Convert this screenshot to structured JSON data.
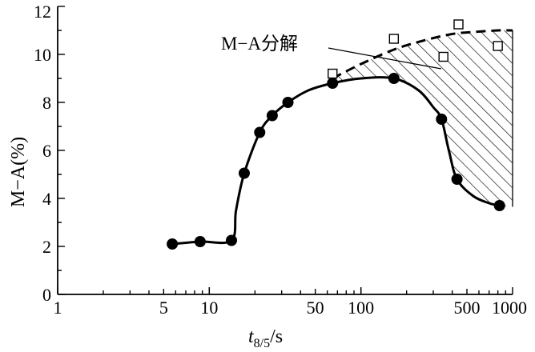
{
  "chart_data": {
    "type": "scatter",
    "title": "",
    "xscale": "log",
    "xlim": [
      1,
      1000
    ],
    "ylim": [
      0,
      12
    ],
    "x_ticks": [
      1,
      5,
      10,
      50,
      100,
      500,
      1000
    ],
    "x_tick_labels": [
      "1",
      "5",
      "10",
      "50",
      "100",
      "500",
      "1000"
    ],
    "y_ticks": [
      0,
      2,
      4,
      6,
      8,
      10,
      12
    ],
    "y_tick_labels": [
      "0",
      "2",
      "4",
      "6",
      "8",
      "10",
      "12"
    ],
    "xlabel": {
      "base": "t",
      "sub": "8/5",
      "unit": "/s"
    },
    "ylabel": "M−A(%)",
    "grid": false,
    "legend": "none",
    "annotations": [
      {
        "text": "M−A分解",
        "points_to": [
          330,
          9.4
        ]
      }
    ],
    "series": [
      {
        "marker": "filled-circle",
        "values": [
          {
            "x": 5.7,
            "y": 2.1
          },
          {
            "x": 8.7,
            "y": 2.2
          },
          {
            "x": 14,
            "y": 2.25
          },
          {
            "x": 17,
            "y": 5.05
          },
          {
            "x": 21.5,
            "y": 6.75
          },
          {
            "x": 26,
            "y": 7.45
          },
          {
            "x": 33,
            "y": 8.0
          },
          {
            "x": 65,
            "y": 8.8
          },
          {
            "x": 165,
            "y": 9.0
          },
          {
            "x": 340,
            "y": 7.3
          },
          {
            "x": 430,
            "y": 4.8
          },
          {
            "x": 820,
            "y": 3.7
          }
        ]
      },
      {
        "marker": "open-square",
        "values": [
          {
            "x": 65,
            "y": 9.2
          },
          {
            "x": 165,
            "y": 10.65
          },
          {
            "x": 350,
            "y": 9.9
          },
          {
            "x": 440,
            "y": 11.25
          },
          {
            "x": 800,
            "y": 10.35
          }
        ]
      }
    ],
    "solid_curve": [
      [
        5.7,
        2.1
      ],
      [
        8.7,
        2.2
      ],
      [
        14,
        2.25
      ],
      [
        15,
        3.5
      ],
      [
        17,
        5.05
      ],
      [
        21.5,
        6.75
      ],
      [
        26,
        7.45
      ],
      [
        33,
        8.0
      ],
      [
        45,
        8.5
      ],
      [
        65,
        8.8
      ],
      [
        100,
        9.0
      ],
      [
        165,
        9.0
      ],
      [
        240,
        8.5
      ],
      [
        300,
        7.8
      ],
      [
        340,
        7.3
      ],
      [
        380,
        6.0
      ],
      [
        430,
        4.8
      ],
      [
        550,
        4.1
      ],
      [
        700,
        3.8
      ],
      [
        820,
        3.7
      ]
    ],
    "dashed_curve": [
      [
        65,
        9.0
      ],
      [
        100,
        9.6
      ],
      [
        165,
        10.2
      ],
      [
        250,
        10.55
      ],
      [
        400,
        10.85
      ],
      [
        600,
        10.95
      ],
      [
        800,
        11.0
      ],
      [
        1000,
        11.0
      ]
    ]
  }
}
